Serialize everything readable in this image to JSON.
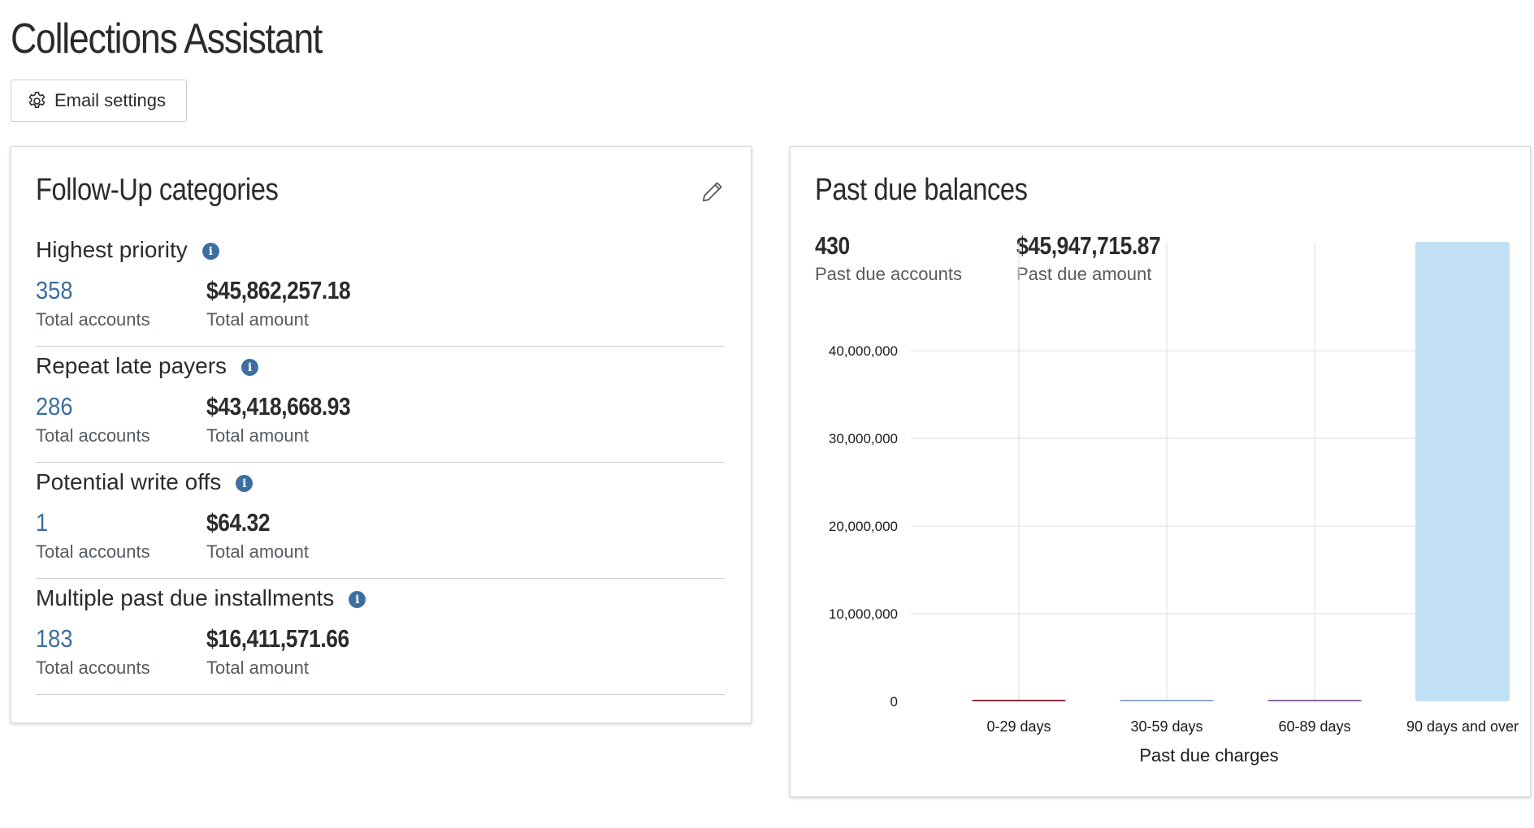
{
  "page": {
    "title": "Collections Assistant"
  },
  "toolbar": {
    "email_settings_label": "Email settings",
    "email_settings_icon": "gear-icon"
  },
  "followup": {
    "title": "Follow-Up categories",
    "edit_icon": "pencil-icon",
    "categories": [
      {
        "name": "Highest priority",
        "count": "358",
        "count_label": "Total accounts",
        "amount": "$45,862,257.18",
        "amount_label": "Total amount"
      },
      {
        "name": "Repeat late payers",
        "count": "286",
        "count_label": "Total accounts",
        "amount": "$43,418,668.93",
        "amount_label": "Total amount"
      },
      {
        "name": "Potential write offs",
        "count": "1",
        "count_label": "Total accounts",
        "amount": "$64.32",
        "amount_label": "Total amount"
      },
      {
        "name": "Multiple past due installments",
        "count": "183",
        "count_label": "Total accounts",
        "amount": "$16,411,571.66",
        "amount_label": "Total amount"
      }
    ]
  },
  "past_due": {
    "title": "Past due balances",
    "accounts": "430",
    "accounts_label": "Past due accounts",
    "amount": "$45,947,715.87",
    "amount_label": "Past due amount"
  },
  "colors": {
    "link_blue": "#3d6ea0",
    "bar_90_plus": "#c2e0f4",
    "bar_0_29": "#8b2e3c",
    "bar_30_59": "#8fa6d8",
    "bar_60_89": "#8a6aa0",
    "gridline": "#e2e2e2"
  },
  "chart_data": {
    "type": "bar",
    "categories": [
      "0-29 days",
      "30-59 days",
      "60-89 days",
      "90 days and over"
    ],
    "values": [
      50000,
      30000,
      20000,
      45847000
    ],
    "xlabel": "Past due charges",
    "ylabel": "",
    "ylim": [
      0,
      45847000
    ],
    "yticks": [
      0,
      10000000,
      20000000,
      30000000,
      40000000
    ],
    "ytick_labels": [
      "0",
      "10,000,000",
      "20,000,000",
      "30,000,000",
      "40,000,000"
    ],
    "grid": true
  }
}
